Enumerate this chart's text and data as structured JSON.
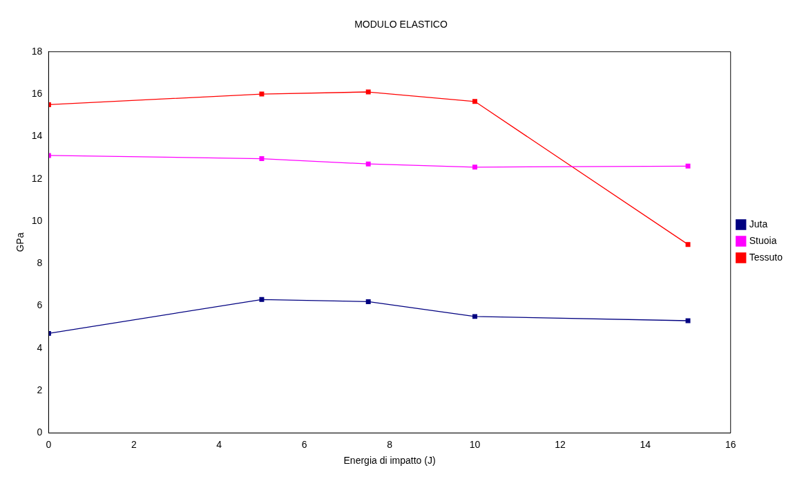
{
  "chart_data": {
    "type": "line",
    "title": "MODULO ELASTICO",
    "xlabel": "Energia di impatto (J)",
    "ylabel": "GPa",
    "x": [
      0,
      5,
      7.5,
      10,
      15
    ],
    "series": [
      {
        "name": "Juta",
        "color": "#000080",
        "values": [
          4.7,
          6.3,
          6.2,
          5.5,
          5.3
        ]
      },
      {
        "name": "Stuoia",
        "color": "#ff00ff",
        "values": [
          13.1,
          12.95,
          12.7,
          12.55,
          12.6
        ]
      },
      {
        "name": "Tessuto",
        "color": "#ff0000",
        "values": [
          15.5,
          16.0,
          16.1,
          15.65,
          8.9
        ]
      }
    ],
    "xlim": [
      0,
      16
    ],
    "xticks": [
      0,
      2,
      4,
      6,
      8,
      10,
      12,
      14,
      16
    ],
    "ylim": [
      0,
      18
    ],
    "yticks": [
      0,
      2,
      4,
      6,
      8,
      10,
      12,
      14,
      16,
      18
    ],
    "grid": false,
    "legend": "right",
    "marker": "square",
    "line_style": "solid"
  }
}
